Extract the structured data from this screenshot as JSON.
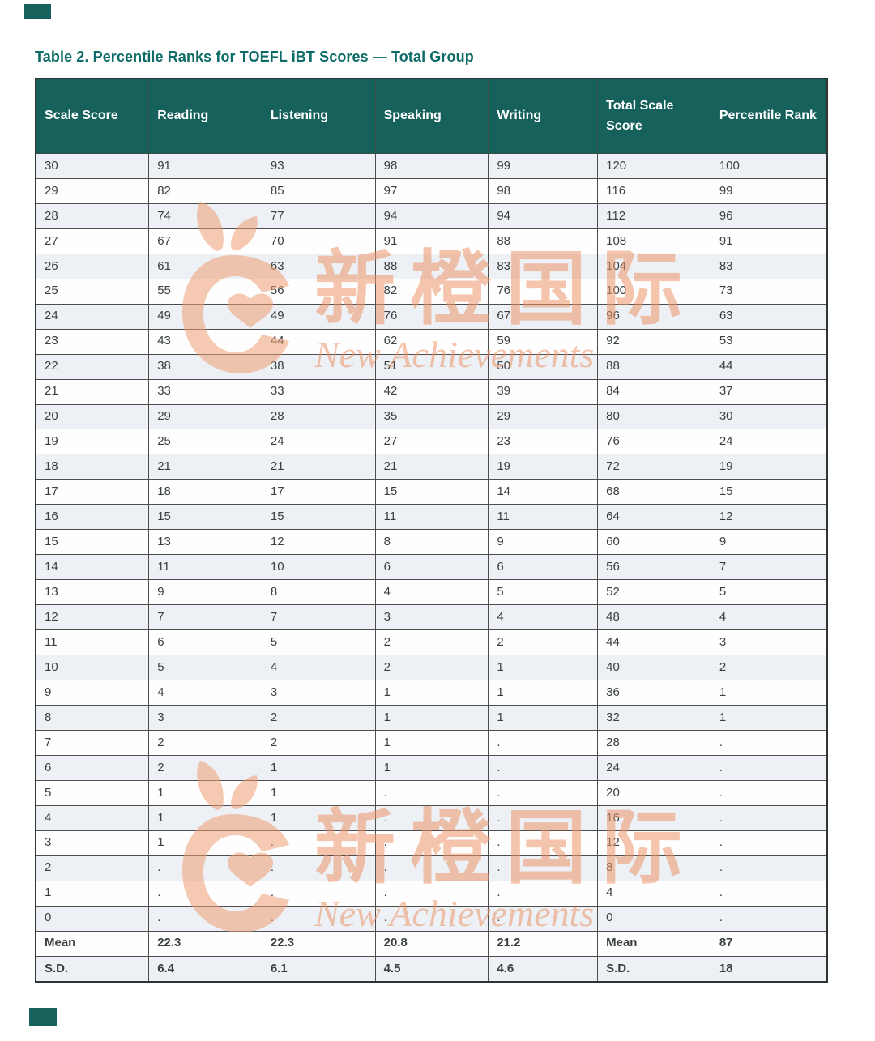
{
  "page": {
    "title": "Table 2. Percentile Ranks for TOEFL iBT Scores — Total Group"
  },
  "colors": {
    "header_teal": "#16615c",
    "title_teal": "#0c6b66",
    "stripe_row": "#edf1f6",
    "watermark_orange": "#eb9468",
    "cell_text": "#3a3f42"
  },
  "watermark": {
    "cn": "新橙国际",
    "en": "New Achievements"
  },
  "table": {
    "headers": [
      "Scale Score",
      "Reading",
      "Listening",
      "Speaking",
      "Writing",
      "Total Scale Score",
      "Percentile Rank"
    ],
    "rows": [
      {
        "cells": [
          "30",
          "91",
          "93",
          "98",
          "99",
          "120",
          "100"
        ]
      },
      {
        "cells": [
          "29",
          "82",
          "85",
          "97",
          "98",
          "116",
          "99"
        ]
      },
      {
        "cells": [
          "28",
          "74",
          "77",
          "94",
          "94",
          "112",
          "96"
        ]
      },
      {
        "cells": [
          "27",
          "67",
          "70",
          "91",
          "88",
          "108",
          "91"
        ]
      },
      {
        "cells": [
          "26",
          "61",
          "63",
          "88",
          "83",
          "104",
          "83"
        ]
      },
      {
        "cells": [
          "25",
          "55",
          "56",
          "82",
          "76",
          "100",
          "73"
        ]
      },
      {
        "cells": [
          "24",
          "49",
          "49",
          "76",
          "67",
          "96",
          "63"
        ]
      },
      {
        "cells": [
          "23",
          "43",
          "44",
          "62",
          "59",
          "92",
          "53"
        ]
      },
      {
        "cells": [
          "22",
          "38",
          "38",
          "51",
          "50",
          "88",
          "44"
        ]
      },
      {
        "cells": [
          "21",
          "33",
          "33",
          "42",
          "39",
          "84",
          "37"
        ]
      },
      {
        "cells": [
          "20",
          "29",
          "28",
          "35",
          "29",
          "80",
          "30"
        ]
      },
      {
        "cells": [
          "19",
          "25",
          "24",
          "27",
          "23",
          "76",
          "24"
        ]
      },
      {
        "cells": [
          "18",
          "21",
          "21",
          "21",
          "19",
          "72",
          "19"
        ]
      },
      {
        "cells": [
          "17",
          "18",
          "17",
          "15",
          "14",
          "68",
          "15"
        ]
      },
      {
        "cells": [
          "16",
          "15",
          "15",
          "11",
          "11",
          "64",
          "12"
        ]
      },
      {
        "cells": [
          "15",
          "13",
          "12",
          "8",
          "9",
          "60",
          "9"
        ]
      },
      {
        "cells": [
          "14",
          "11",
          "10",
          "6",
          "6",
          "56",
          "7"
        ]
      },
      {
        "cells": [
          "13",
          "9",
          "8",
          "4",
          "5",
          "52",
          "5"
        ]
      },
      {
        "cells": [
          "12",
          "7",
          "7",
          "3",
          "4",
          "48",
          "4"
        ]
      },
      {
        "cells": [
          "11",
          "6",
          "5",
          "2",
          "2",
          "44",
          "3"
        ]
      },
      {
        "cells": [
          "10",
          "5",
          "4",
          "2",
          "1",
          "40",
          "2"
        ]
      },
      {
        "cells": [
          "9",
          "4",
          "3",
          "1",
          "1",
          "36",
          "1"
        ]
      },
      {
        "cells": [
          "8",
          "3",
          "2",
          "1",
          "1",
          "32",
          "1"
        ]
      },
      {
        "cells": [
          "7",
          "2",
          "2",
          "1",
          ".",
          "28",
          "."
        ]
      },
      {
        "cells": [
          "6",
          "2",
          "1",
          "1",
          ".",
          "24",
          "."
        ]
      },
      {
        "cells": [
          "5",
          "1",
          "1",
          ".",
          ".",
          "20",
          "."
        ]
      },
      {
        "cells": [
          "4",
          "1",
          "1",
          ".",
          ".",
          "16",
          "."
        ]
      },
      {
        "cells": [
          "3",
          "1",
          ".",
          ".",
          ".",
          "12",
          "."
        ]
      },
      {
        "cells": [
          "2",
          ".",
          ".",
          ".",
          ".",
          "8",
          "."
        ]
      },
      {
        "cells": [
          "1",
          ".",
          ".",
          ".",
          ".",
          "4",
          "."
        ]
      },
      {
        "cells": [
          "0",
          ".",
          ".",
          ".",
          ".",
          "0",
          "."
        ]
      },
      {
        "cells": [
          "Mean",
          "22.3",
          "22.3",
          "20.8",
          "21.2",
          "Mean",
          "87"
        ],
        "summary": true
      },
      {
        "cells": [
          "S.D.",
          "6.4",
          "6.1",
          "4.5",
          "4.6",
          "S.D.",
          "18"
        ],
        "summary": true
      }
    ]
  }
}
